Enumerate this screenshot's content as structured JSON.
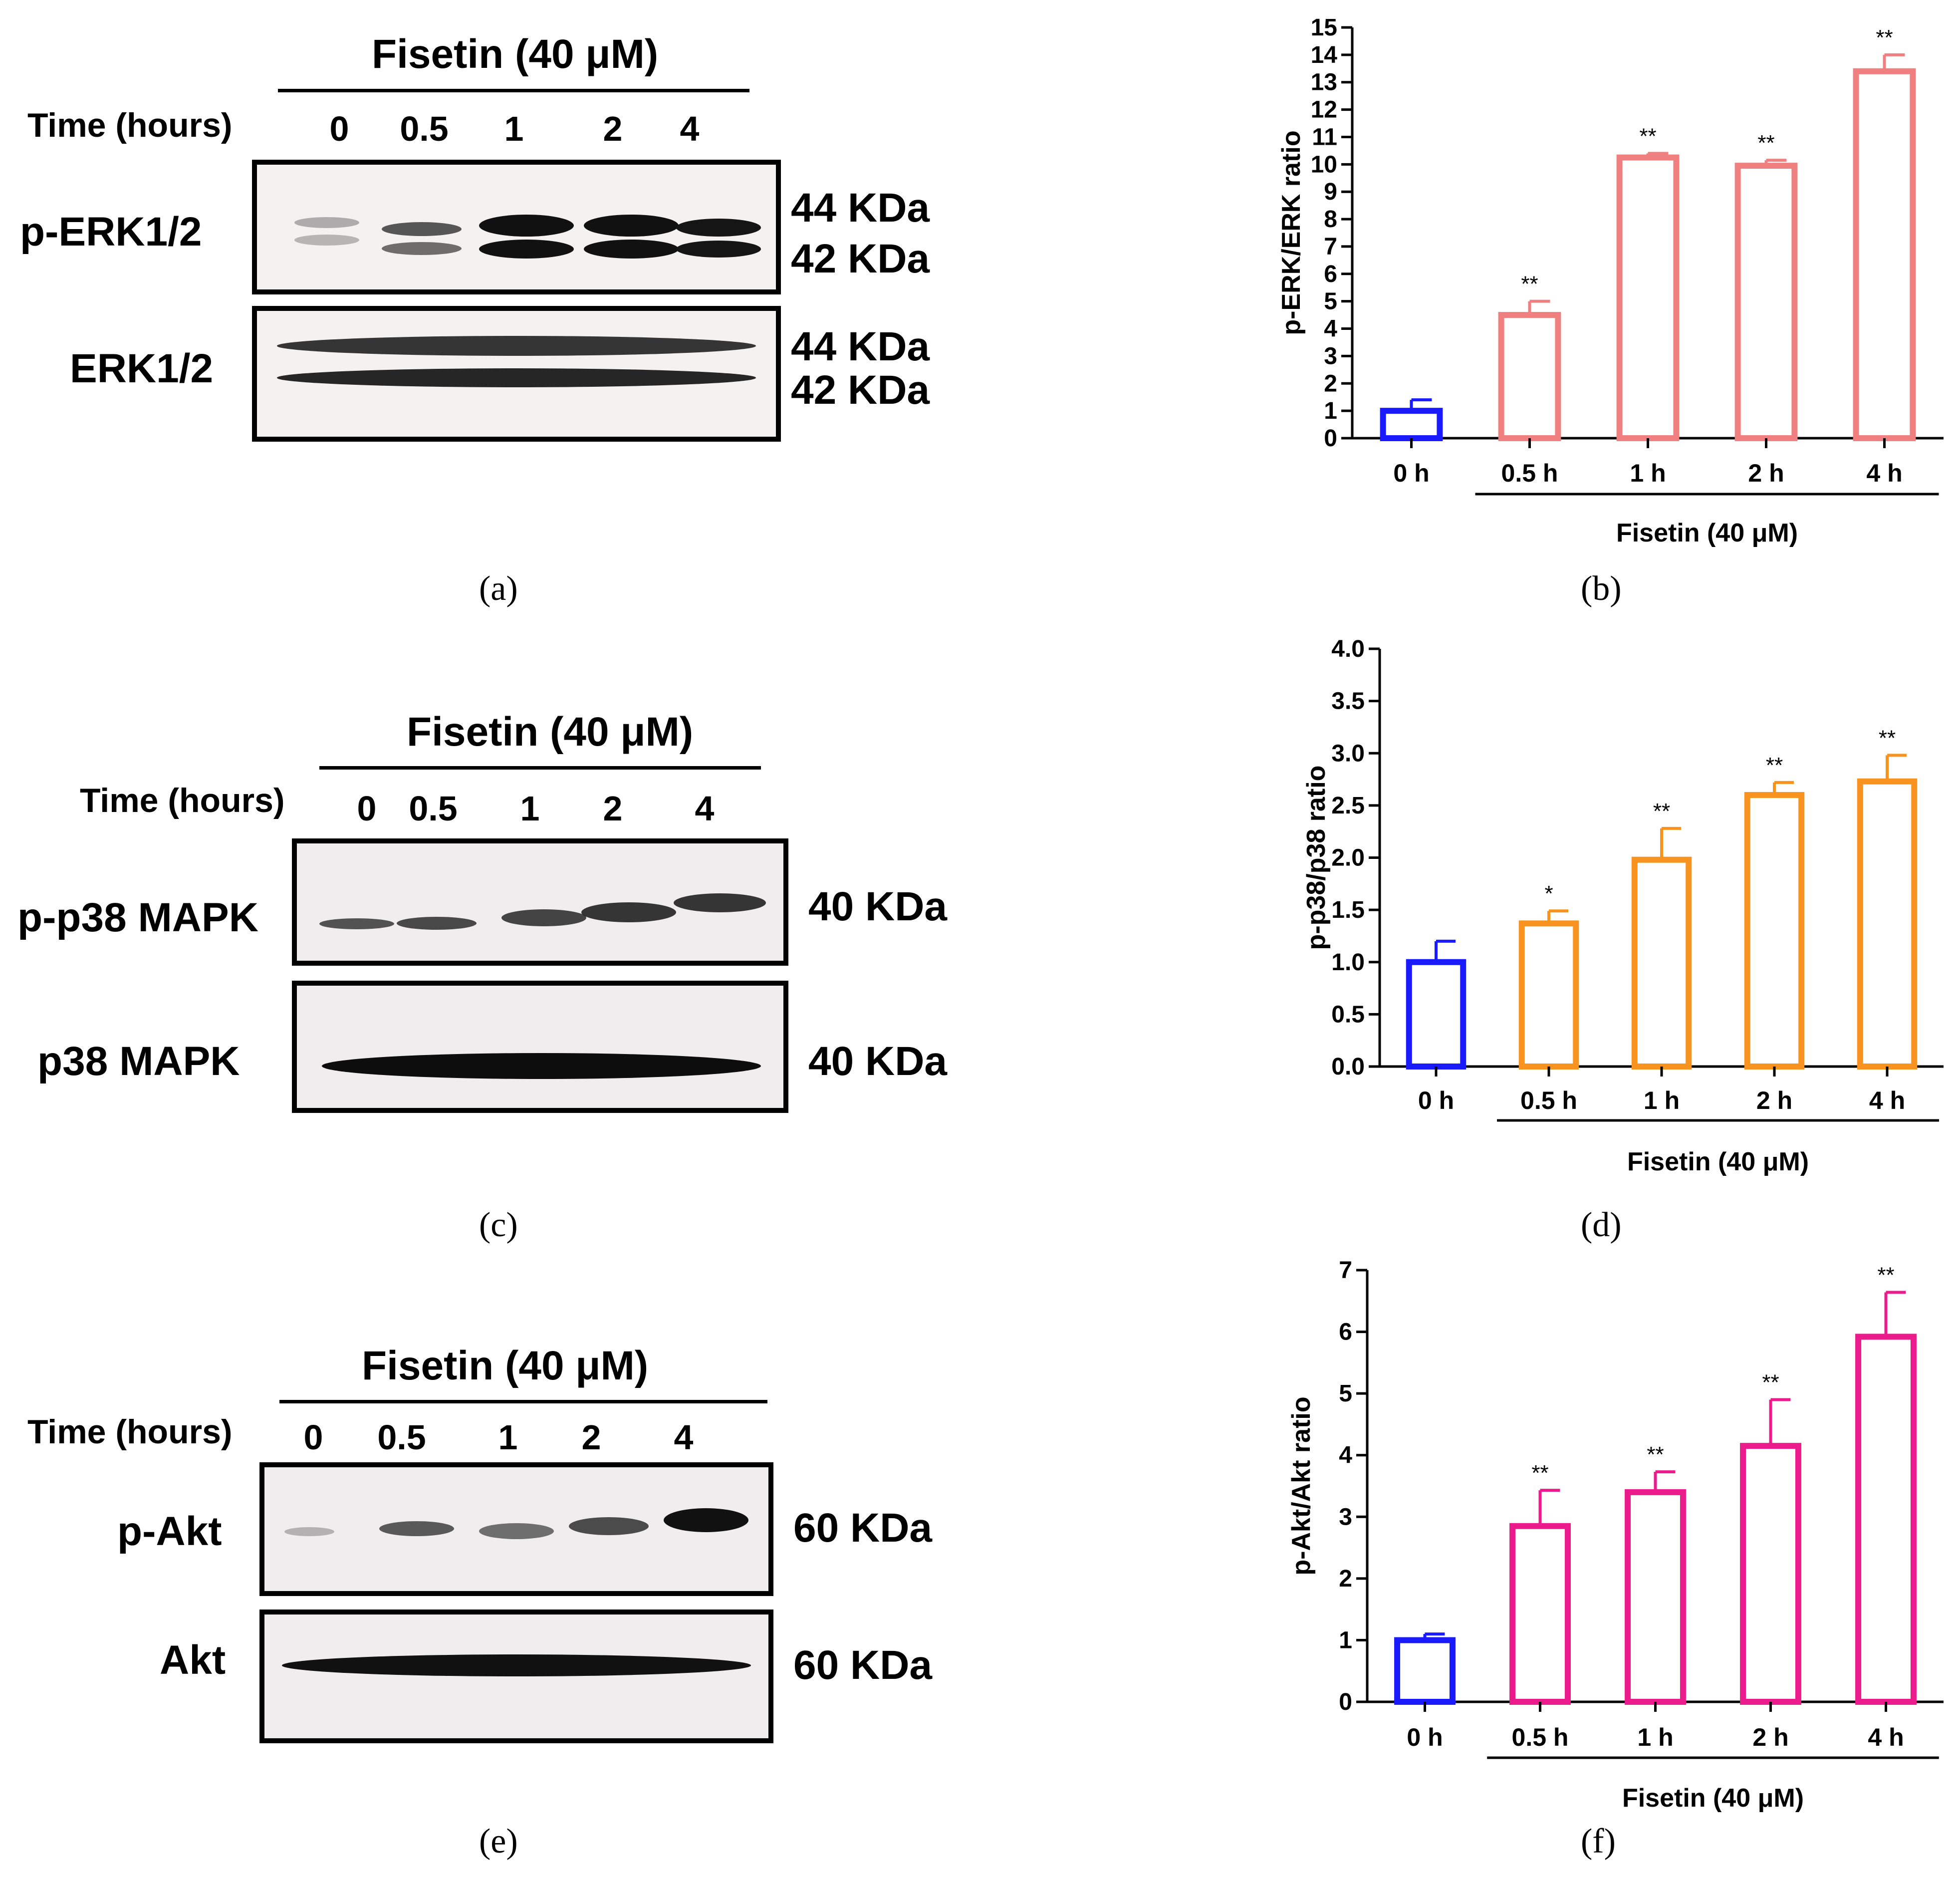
{
  "panels": {
    "a": {
      "caption": "(a)",
      "title": "Fisetin (40 μM)",
      "time_label": "Time (hours)",
      "lanes": [
        "0",
        "0.5",
        "1",
        "2",
        "4"
      ],
      "blots": [
        {
          "protein": "p-ERK1/2",
          "kda": [
            "44 KDa",
            "42 KDa"
          ]
        },
        {
          "protein": "ERK1/2",
          "kda": [
            "44 KDa",
            "42 KDa"
          ]
        }
      ]
    },
    "c": {
      "caption": "(c)",
      "title": "Fisetin (40 μM)",
      "time_label": "Time (hours)",
      "lanes": [
        "0",
        "0.5",
        "1",
        "2",
        "4"
      ],
      "blots": [
        {
          "protein": "p-p38 MAPK",
          "kda": [
            "40 KDa"
          ]
        },
        {
          "protein": "p38 MAPK",
          "kda": [
            "40 KDa"
          ]
        }
      ]
    },
    "e": {
      "caption": "(e)",
      "title": "Fisetin (40 μM)",
      "time_label": "Time (hours)",
      "lanes": [
        "0",
        "0.5",
        "1",
        "2",
        "4"
      ],
      "blots": [
        {
          "protein": "p-Akt",
          "kda": [
            "60 KDa"
          ]
        },
        {
          "protein": "Akt",
          "kda": [
            "60 KDa"
          ]
        }
      ]
    },
    "b": {
      "caption": "(b)"
    },
    "d": {
      "caption": "(d)"
    },
    "f": {
      "caption": "(f)"
    }
  },
  "colors": {
    "control": "#1a1aff",
    "erk": "#f08080",
    "p38": "#f7931e",
    "akt": "#ec1b8c"
  },
  "chart_data": [
    {
      "id": "b",
      "type": "bar",
      "categories": [
        "0 h",
        "0.5 h",
        "1 h",
        "2 h",
        "4 h"
      ],
      "values": [
        1.0,
        4.5,
        10.25,
        9.95,
        13.4
      ],
      "errors": [
        0.4,
        0.5,
        0.15,
        0.2,
        0.6
      ],
      "significance": [
        "",
        "**",
        "**",
        "**",
        "**"
      ],
      "ylabel": "p-ERK/ERK ratio",
      "ylim": [
        0,
        15
      ],
      "yticks": [
        "0",
        "1",
        "2",
        "3",
        "4",
        "5",
        "6",
        "7",
        "8",
        "9",
        "10",
        "11",
        "12",
        "13",
        "14",
        "15"
      ],
      "group_label": "Fisetin (40 μM)",
      "color_key": "erk"
    },
    {
      "id": "d",
      "type": "bar",
      "categories": [
        "0 h",
        "0.5 h",
        "1 h",
        "2 h",
        "4 h"
      ],
      "values": [
        1.0,
        1.37,
        1.98,
        2.6,
        2.73
      ],
      "errors": [
        0.2,
        0.12,
        0.3,
        0.12,
        0.25
      ],
      "significance": [
        "",
        "*",
        "**",
        "**",
        "**"
      ],
      "ylabel": "p-p38/p38 ratio",
      "ylim": [
        0,
        4
      ],
      "yticks": [
        "0.0",
        "0.5",
        "1.0",
        "1.5",
        "2.0",
        "2.5",
        "3.0",
        "3.5",
        "4.0"
      ],
      "group_label": "Fisetin (40 μM)",
      "color_key": "p38"
    },
    {
      "id": "f",
      "type": "bar",
      "categories": [
        "0 h",
        "0.5 h",
        "1 h",
        "2 h",
        "4 h"
      ],
      "values": [
        1.0,
        2.85,
        3.4,
        4.15,
        5.92
      ],
      "errors": [
        0.1,
        0.58,
        0.33,
        0.75,
        0.72
      ],
      "significance": [
        "",
        "**",
        "**",
        "**",
        "**"
      ],
      "ylabel": "p-Akt/Akt ratio",
      "ylim": [
        0,
        7
      ],
      "yticks": [
        "0",
        "1",
        "2",
        "3",
        "4",
        "5",
        "6",
        "7"
      ],
      "group_label": "Fisetin (40 μM)",
      "color_key": "akt"
    }
  ]
}
